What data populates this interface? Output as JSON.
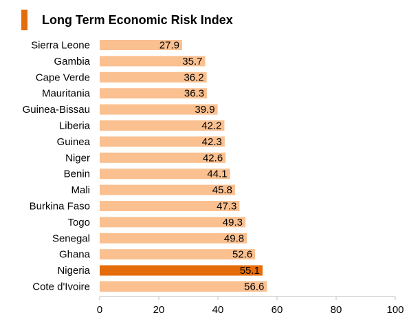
{
  "colors": {
    "bar": "#FAC090",
    "highlight": "#E46C0A",
    "accent": "#E46C0A",
    "axis": "#BFBFBF"
  },
  "chart_data": {
    "type": "bar",
    "orientation": "horizontal",
    "title": "Long Term Economic Risk Index",
    "categories": [
      "Sierra Leone",
      "Gambia",
      "Cape Verde",
      "Mauritania",
      "Guinea-Bissau",
      "Liberia",
      "Guinea",
      "Niger",
      "Benin",
      "Mali",
      "Burkina Faso",
      "Togo",
      "Senegal",
      "Ghana",
      "Nigeria",
      "Cote d'Ivoire"
    ],
    "values": [
      27.9,
      35.7,
      36.2,
      36.3,
      39.9,
      42.2,
      42.3,
      42.6,
      44.1,
      45.8,
      47.3,
      49.3,
      49.8,
      52.6,
      55.1,
      56.6
    ],
    "value_labels": [
      "27.9",
      "35.7",
      "36.2",
      "36.3",
      "39.9",
      "42.2",
      "42.3",
      "42.6",
      "44.1",
      "45.8",
      "47.3",
      "49.3",
      "49.8",
      "52.6",
      "55.1",
      "56.6"
    ],
    "highlighted": "Nigeria",
    "xlim": [
      0,
      100
    ],
    "xticks": [
      0,
      20,
      40,
      60,
      80,
      100
    ],
    "xtick_labels": [
      "0",
      "20",
      "40",
      "60",
      "80",
      "100"
    ],
    "grid": false,
    "legend": "none"
  }
}
